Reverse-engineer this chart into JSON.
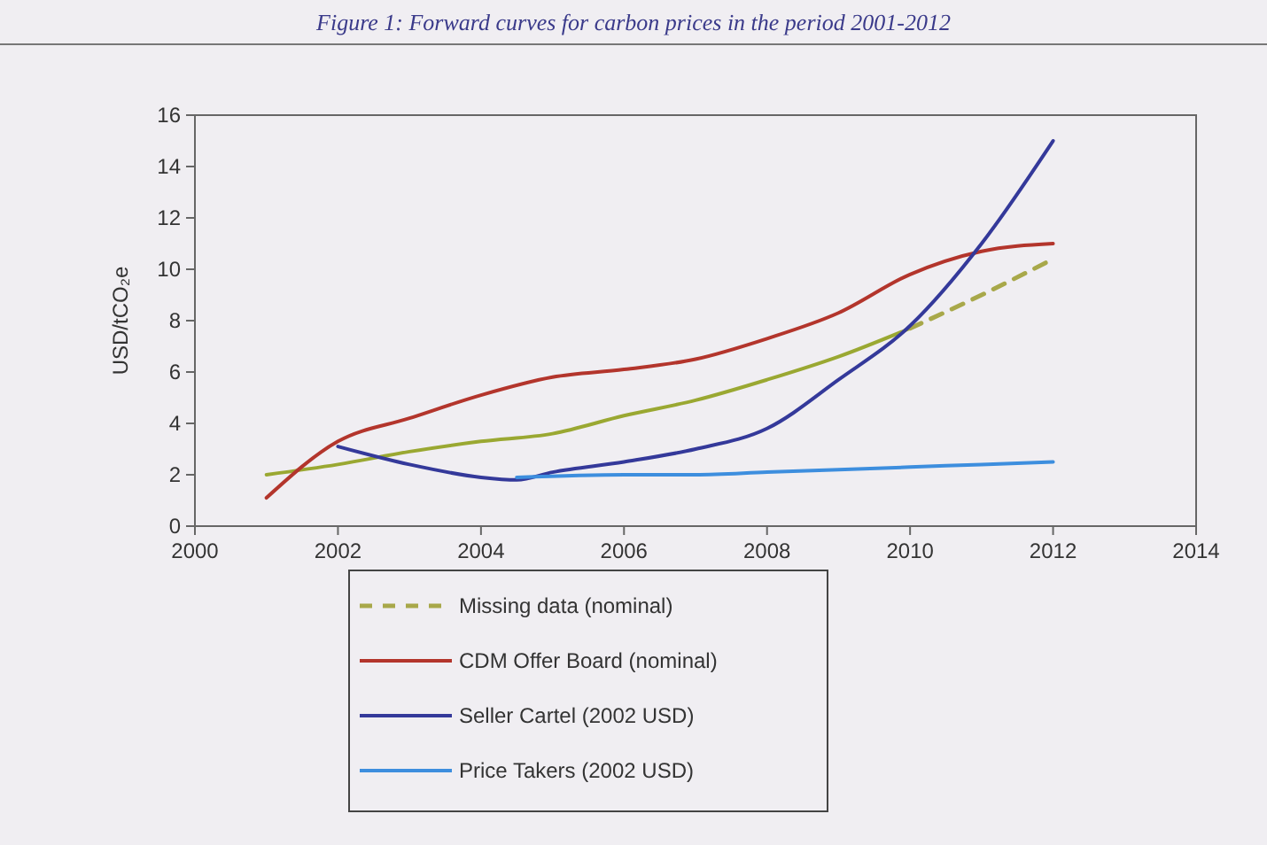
{
  "chart_data": {
    "type": "line",
    "title": "Figure 1: Forward curves for carbon prices in the period 2001-2012",
    "ylabel": "USD/tCO₂e",
    "xlim": [
      2000,
      2014
    ],
    "xticks": [
      2000,
      2002,
      2004,
      2006,
      2008,
      2010,
      2012,
      2014
    ],
    "ylim": [
      0,
      16
    ],
    "yticks": [
      0,
      2,
      4,
      6,
      8,
      10,
      12,
      14,
      16
    ],
    "grid": false,
    "legend": "bottom",
    "marker": "none",
    "series": [
      {
        "color": "#9aa832",
        "x": [
          2001,
          2002,
          2003,
          2004,
          2005,
          2006,
          2007,
          2008,
          2009,
          2010
        ],
        "values": [
          2,
          2.4,
          2.9,
          3.3,
          3.6,
          4.3,
          4.9,
          5.7,
          6.6,
          7.7
        ]
      },
      {
        "name": "Missing data (nominal)",
        "color": "#a8a84a",
        "line_style": "dashed",
        "x": [
          2010,
          2011,
          2012
        ],
        "values": [
          7.7,
          9,
          10.4
        ]
      },
      {
        "name": "CDM Offer Board (nominal)",
        "color": "#b3352c",
        "x": [
          2001,
          2002,
          2003,
          2004,
          2005,
          2006,
          2007,
          2008,
          2009,
          2010,
          2011,
          2012
        ],
        "values": [
          1.1,
          3.3,
          4.2,
          5.1,
          5.8,
          6.1,
          6.5,
          7.3,
          8.3,
          9.8,
          10.7,
          11
        ]
      },
      {
        "name": "Seller Cartel (2002 USD)",
        "color": "#34399a",
        "x": [
          2002,
          2003,
          2004,
          2004.5,
          2005,
          2006,
          2007,
          2008,
          2009,
          2010,
          2011,
          2012
        ],
        "values": [
          3.1,
          2.4,
          1.9,
          1.8,
          2.1,
          2.5,
          3,
          3.8,
          5.7,
          7.8,
          11,
          15
        ]
      },
      {
        "name": "Price Takers (2002 USD)",
        "color": "#3d8ede",
        "x": [
          2004.5,
          2006,
          2007,
          2008,
          2009,
          2010,
          2011,
          2012
        ],
        "values": [
          1.9,
          2,
          2,
          2.1,
          2.2,
          2.3,
          2.4,
          2.5
        ]
      }
    ]
  }
}
